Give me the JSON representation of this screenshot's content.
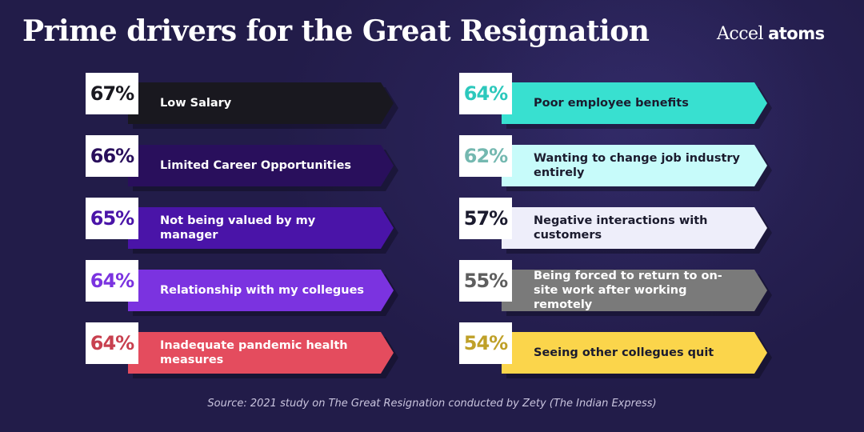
{
  "title": "Prime drivers for the Great Resignation",
  "logo": {
    "brand": "Accel",
    "product": "atoms"
  },
  "source": "Source: 2021 study on The Great Resignation conducted by Zety (The Indian Express)",
  "chart_data": {
    "type": "bar",
    "title": "Prime drivers for the Great Resignation",
    "unit": "%",
    "columns": 2,
    "items": [
      {
        "label": "Low Salary",
        "value": 67,
        "display": "67%",
        "color": "#19181f",
        "text_color": "#ffffff",
        "value_color": "#19181f"
      },
      {
        "label": "Limited Career Opportunities",
        "value": 66,
        "display": "66%",
        "color": "#290f5c",
        "text_color": "#ffffff",
        "value_color": "#290f5c"
      },
      {
        "label": "Not being valued by my manager",
        "value": 65,
        "display": "65%",
        "color": "#4a14a8",
        "text_color": "#ffffff",
        "value_color": "#4a14a8"
      },
      {
        "label": "Relationship with my collegues",
        "value": 64,
        "display": "64%",
        "color": "#7b33e0",
        "text_color": "#ffffff",
        "value_color": "#7b33e0"
      },
      {
        "label": "Inadequate pandemic health measures",
        "value": 64,
        "display": "64%",
        "color": "#e44c5e",
        "text_color": "#ffffff",
        "value_color": "#c8404f"
      },
      {
        "label": "Poor employee benefits",
        "value": 64,
        "display": "64%",
        "color": "#38e0d0",
        "text_color": "#1b1b2e",
        "value_color": "#2cc8bc"
      },
      {
        "label": "Wanting to change job industry entirely",
        "value": 62,
        "display": "62%",
        "color": "#c7fbfa",
        "text_color": "#1b1b2e",
        "value_color": "#74b8b0"
      },
      {
        "label": "Negative interactions with customers",
        "value": 57,
        "display": "57%",
        "color": "#eeeefa",
        "text_color": "#1b1b2e",
        "value_color": "#1b1b2e"
      },
      {
        "label": "Being forced to return to on-site work after working remotely",
        "value": 55,
        "display": "55%",
        "color": "#7a7a7a",
        "text_color": "#ffffff",
        "value_color": "#5e5e5e"
      },
      {
        "label": "Seeing other collegues quit",
        "value": 54,
        "display": "54%",
        "color": "#fbd54b",
        "text_color": "#1b1b2e",
        "value_color": "#bfa028"
      }
    ]
  }
}
